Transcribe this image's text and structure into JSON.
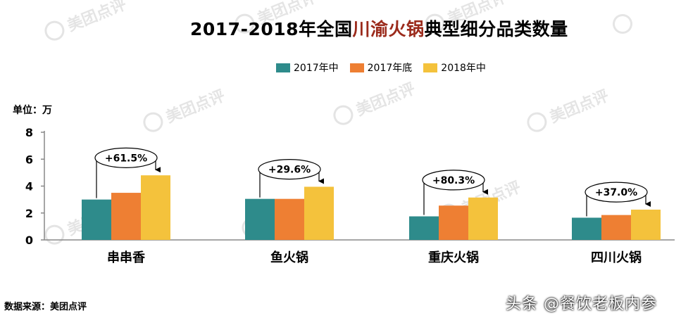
{
  "title": {
    "pre": "2017-2018年全国",
    "highlight": "川渝火锅",
    "post": "典型细分品类数量"
  },
  "unit_label": "单位：万",
  "source": "数据来源：美团点评",
  "credit": "头条 @餐饮老板内参",
  "watermark_text": "美团点评",
  "colors": {
    "title_highlight": "#9b2b1c",
    "series": [
      "#2e8b8b",
      "#ee7f33",
      "#f4c23c"
    ]
  },
  "chart_data": {
    "type": "bar",
    "categories": [
      "串串香",
      "鱼火锅",
      "重庆火锅",
      "四川火锅"
    ],
    "series": [
      {
        "name": "2017年中",
        "values": [
          3.0,
          3.05,
          1.75,
          1.65
        ]
      },
      {
        "name": "2017年底",
        "values": [
          3.5,
          3.05,
          2.55,
          1.85
        ]
      },
      {
        "name": "2018年中",
        "values": [
          4.8,
          3.95,
          3.15,
          2.25
        ]
      }
    ],
    "ylim": [
      0,
      8
    ],
    "yticks": [
      0,
      2,
      4,
      6,
      8
    ],
    "annotations": [
      "+61.5%",
      "+29.6%",
      "+80.3%",
      "+37.0%"
    ],
    "legend_position": "top",
    "grid": false
  }
}
